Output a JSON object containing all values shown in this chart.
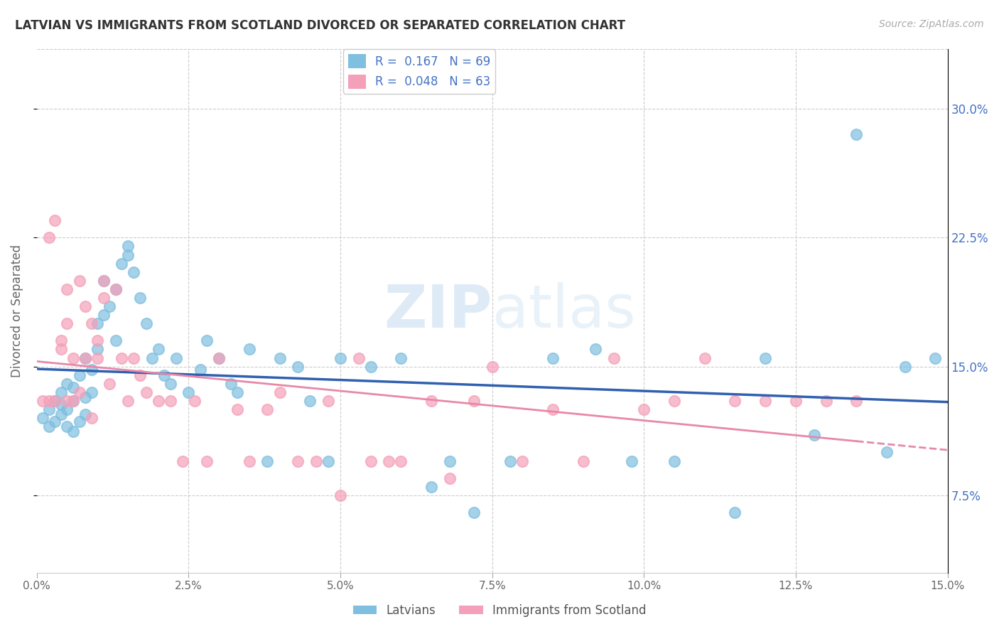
{
  "title": "LATVIAN VS IMMIGRANTS FROM SCOTLAND DIVORCED OR SEPARATED CORRELATION CHART",
  "source": "Source: ZipAtlas.com",
  "ylabel": "Divorced or Separated",
  "xlim": [
    0.0,
    0.15
  ],
  "ylim": [
    0.03,
    0.335
  ],
  "watermark": "ZIPatlas",
  "legend_latvian_R": "0.167",
  "legend_latvian_N": "69",
  "legend_scotland_R": "0.048",
  "legend_scotland_N": "63",
  "latvian_color": "#7fbfdf",
  "scotland_color": "#f4a0b8",
  "latvian_line_color": "#3060b0",
  "scotland_line_color": "#e888a8",
  "latvian_x": [
    0.001,
    0.002,
    0.002,
    0.003,
    0.003,
    0.004,
    0.004,
    0.004,
    0.005,
    0.005,
    0.005,
    0.006,
    0.006,
    0.006,
    0.007,
    0.007,
    0.008,
    0.008,
    0.008,
    0.009,
    0.009,
    0.01,
    0.01,
    0.011,
    0.011,
    0.012,
    0.013,
    0.013,
    0.014,
    0.015,
    0.015,
    0.016,
    0.017,
    0.018,
    0.019,
    0.02,
    0.021,
    0.022,
    0.023,
    0.025,
    0.027,
    0.028,
    0.03,
    0.032,
    0.033,
    0.035,
    0.038,
    0.04,
    0.043,
    0.045,
    0.048,
    0.05,
    0.055,
    0.06,
    0.065,
    0.068,
    0.072,
    0.078,
    0.085,
    0.092,
    0.098,
    0.105,
    0.115,
    0.12,
    0.128,
    0.135,
    0.14,
    0.143,
    0.148
  ],
  "latvian_y": [
    0.12,
    0.125,
    0.115,
    0.13,
    0.118,
    0.122,
    0.135,
    0.128,
    0.14,
    0.125,
    0.115,
    0.13,
    0.138,
    0.112,
    0.145,
    0.118,
    0.155,
    0.132,
    0.122,
    0.148,
    0.135,
    0.16,
    0.175,
    0.18,
    0.2,
    0.185,
    0.165,
    0.195,
    0.21,
    0.22,
    0.215,
    0.205,
    0.19,
    0.175,
    0.155,
    0.16,
    0.145,
    0.14,
    0.155,
    0.135,
    0.148,
    0.165,
    0.155,
    0.14,
    0.135,
    0.16,
    0.095,
    0.155,
    0.15,
    0.13,
    0.095,
    0.155,
    0.15,
    0.155,
    0.08,
    0.095,
    0.065,
    0.095,
    0.155,
    0.16,
    0.095,
    0.095,
    0.065,
    0.155,
    0.11,
    0.285,
    0.1,
    0.15,
    0.155
  ],
  "scotland_x": [
    0.001,
    0.002,
    0.002,
    0.003,
    0.003,
    0.004,
    0.004,
    0.005,
    0.005,
    0.005,
    0.006,
    0.006,
    0.007,
    0.007,
    0.008,
    0.008,
    0.009,
    0.009,
    0.01,
    0.01,
    0.011,
    0.011,
    0.012,
    0.013,
    0.014,
    0.015,
    0.016,
    0.017,
    0.018,
    0.02,
    0.022,
    0.024,
    0.026,
    0.028,
    0.03,
    0.033,
    0.035,
    0.038,
    0.04,
    0.043,
    0.046,
    0.048,
    0.05,
    0.053,
    0.055,
    0.058,
    0.06,
    0.065,
    0.068,
    0.072,
    0.075,
    0.08,
    0.085,
    0.09,
    0.095,
    0.1,
    0.105,
    0.11,
    0.115,
    0.12,
    0.125,
    0.13,
    0.135
  ],
  "scotland_y": [
    0.13,
    0.225,
    0.13,
    0.235,
    0.13,
    0.16,
    0.165,
    0.175,
    0.13,
    0.195,
    0.155,
    0.13,
    0.2,
    0.135,
    0.155,
    0.185,
    0.12,
    0.175,
    0.155,
    0.165,
    0.2,
    0.19,
    0.14,
    0.195,
    0.155,
    0.13,
    0.155,
    0.145,
    0.135,
    0.13,
    0.13,
    0.095,
    0.13,
    0.095,
    0.155,
    0.125,
    0.095,
    0.125,
    0.135,
    0.095,
    0.095,
    0.13,
    0.075,
    0.155,
    0.095,
    0.095,
    0.095,
    0.13,
    0.085,
    0.13,
    0.15,
    0.095,
    0.125,
    0.095,
    0.155,
    0.125,
    0.13,
    0.155,
    0.13,
    0.13,
    0.13,
    0.13,
    0.13
  ]
}
